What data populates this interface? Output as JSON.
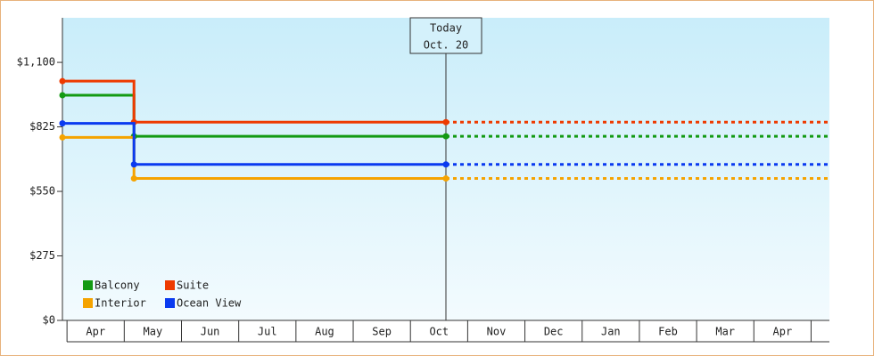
{
  "chart_data": {
    "type": "step-line",
    "x": [
      -0.08,
      1.17,
      6.62
    ],
    "series": [
      {
        "name": "Balcony",
        "color": "#139a13",
        "values": [
          960,
          785,
          785
        ]
      },
      {
        "name": "Suite",
        "color": "#ee3a00",
        "values": [
          1020,
          845,
          845
        ]
      },
      {
        "name": "Interior",
        "color": "#f5a300",
        "values": [
          780,
          605,
          605
        ]
      },
      {
        "name": "Ocean View",
        "color": "#0a3af0",
        "values": [
          840,
          665,
          665
        ]
      }
    ],
    "ylim": [
      0,
      1290
    ],
    "yticks": [
      {
        "value": 0,
        "label": "$0"
      },
      {
        "value": 275,
        "label": "$275"
      },
      {
        "value": 550,
        "label": "$550"
      },
      {
        "value": 825,
        "label": "$825"
      },
      {
        "value": 1100,
        "label": "$1,100"
      }
    ],
    "xlim": [
      -0.08,
      13.32
    ],
    "xticks": [
      {
        "value": 0.5,
        "label": "Apr"
      },
      {
        "value": 1.5,
        "label": "May"
      },
      {
        "value": 2.5,
        "label": "Jun"
      },
      {
        "value": 3.5,
        "label": "Jul"
      },
      {
        "value": 4.5,
        "label": "Aug"
      },
      {
        "value": 5.5,
        "label": "Sep"
      },
      {
        "value": 6.5,
        "label": "Oct"
      },
      {
        "value": 7.5,
        "label": "Nov"
      },
      {
        "value": 8.5,
        "label": "Dec"
      },
      {
        "value": 9.5,
        "label": "Jan"
      },
      {
        "value": 10.5,
        "label": "Feb"
      },
      {
        "value": 11.5,
        "label": "Mar"
      },
      {
        "value": 12.5,
        "label": "Apr"
      }
    ],
    "today": {
      "x": 6.62,
      "lines": [
        "Today",
        "Oct. 20"
      ]
    },
    "legend": "bottom-left"
  }
}
